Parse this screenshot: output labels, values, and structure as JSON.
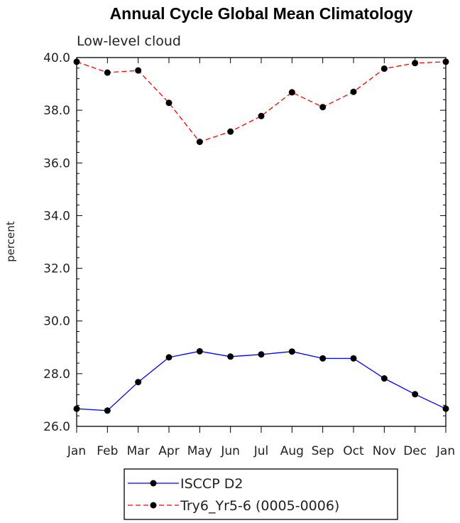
{
  "chart_data": {
    "type": "line",
    "title": "Annual Cycle Global Mean Climatology",
    "subtitle": "Low-level cloud",
    "ylabel": "percent",
    "xlabel": "",
    "categories": [
      "Jan",
      "Feb",
      "Mar",
      "Apr",
      "May",
      "Jun",
      "Jul",
      "Aug",
      "Sep",
      "Oct",
      "Nov",
      "Dec",
      "Jan"
    ],
    "ylim": [
      26.0,
      40.0
    ],
    "yticks": [
      "26.0",
      "28.0",
      "30.0",
      "32.0",
      "34.0",
      "36.0",
      "38.0",
      "40.0"
    ],
    "grid": false,
    "legend_position": "bottom",
    "series": [
      {
        "name": "ISCCP D2",
        "color": "#0000ff",
        "dash": "solid",
        "values": [
          26.67,
          26.6,
          27.68,
          28.62,
          28.85,
          28.65,
          28.73,
          28.84,
          28.58,
          28.58,
          27.82,
          27.22,
          26.67
        ]
      },
      {
        "name": "Try6_Yr5-6 (0005-0006)",
        "color": "#ff0000",
        "dash": "dashed",
        "values": [
          39.84,
          39.43,
          39.51,
          38.28,
          36.8,
          37.19,
          37.78,
          38.68,
          38.12,
          38.7,
          39.58,
          39.79,
          39.84
        ]
      }
    ]
  }
}
